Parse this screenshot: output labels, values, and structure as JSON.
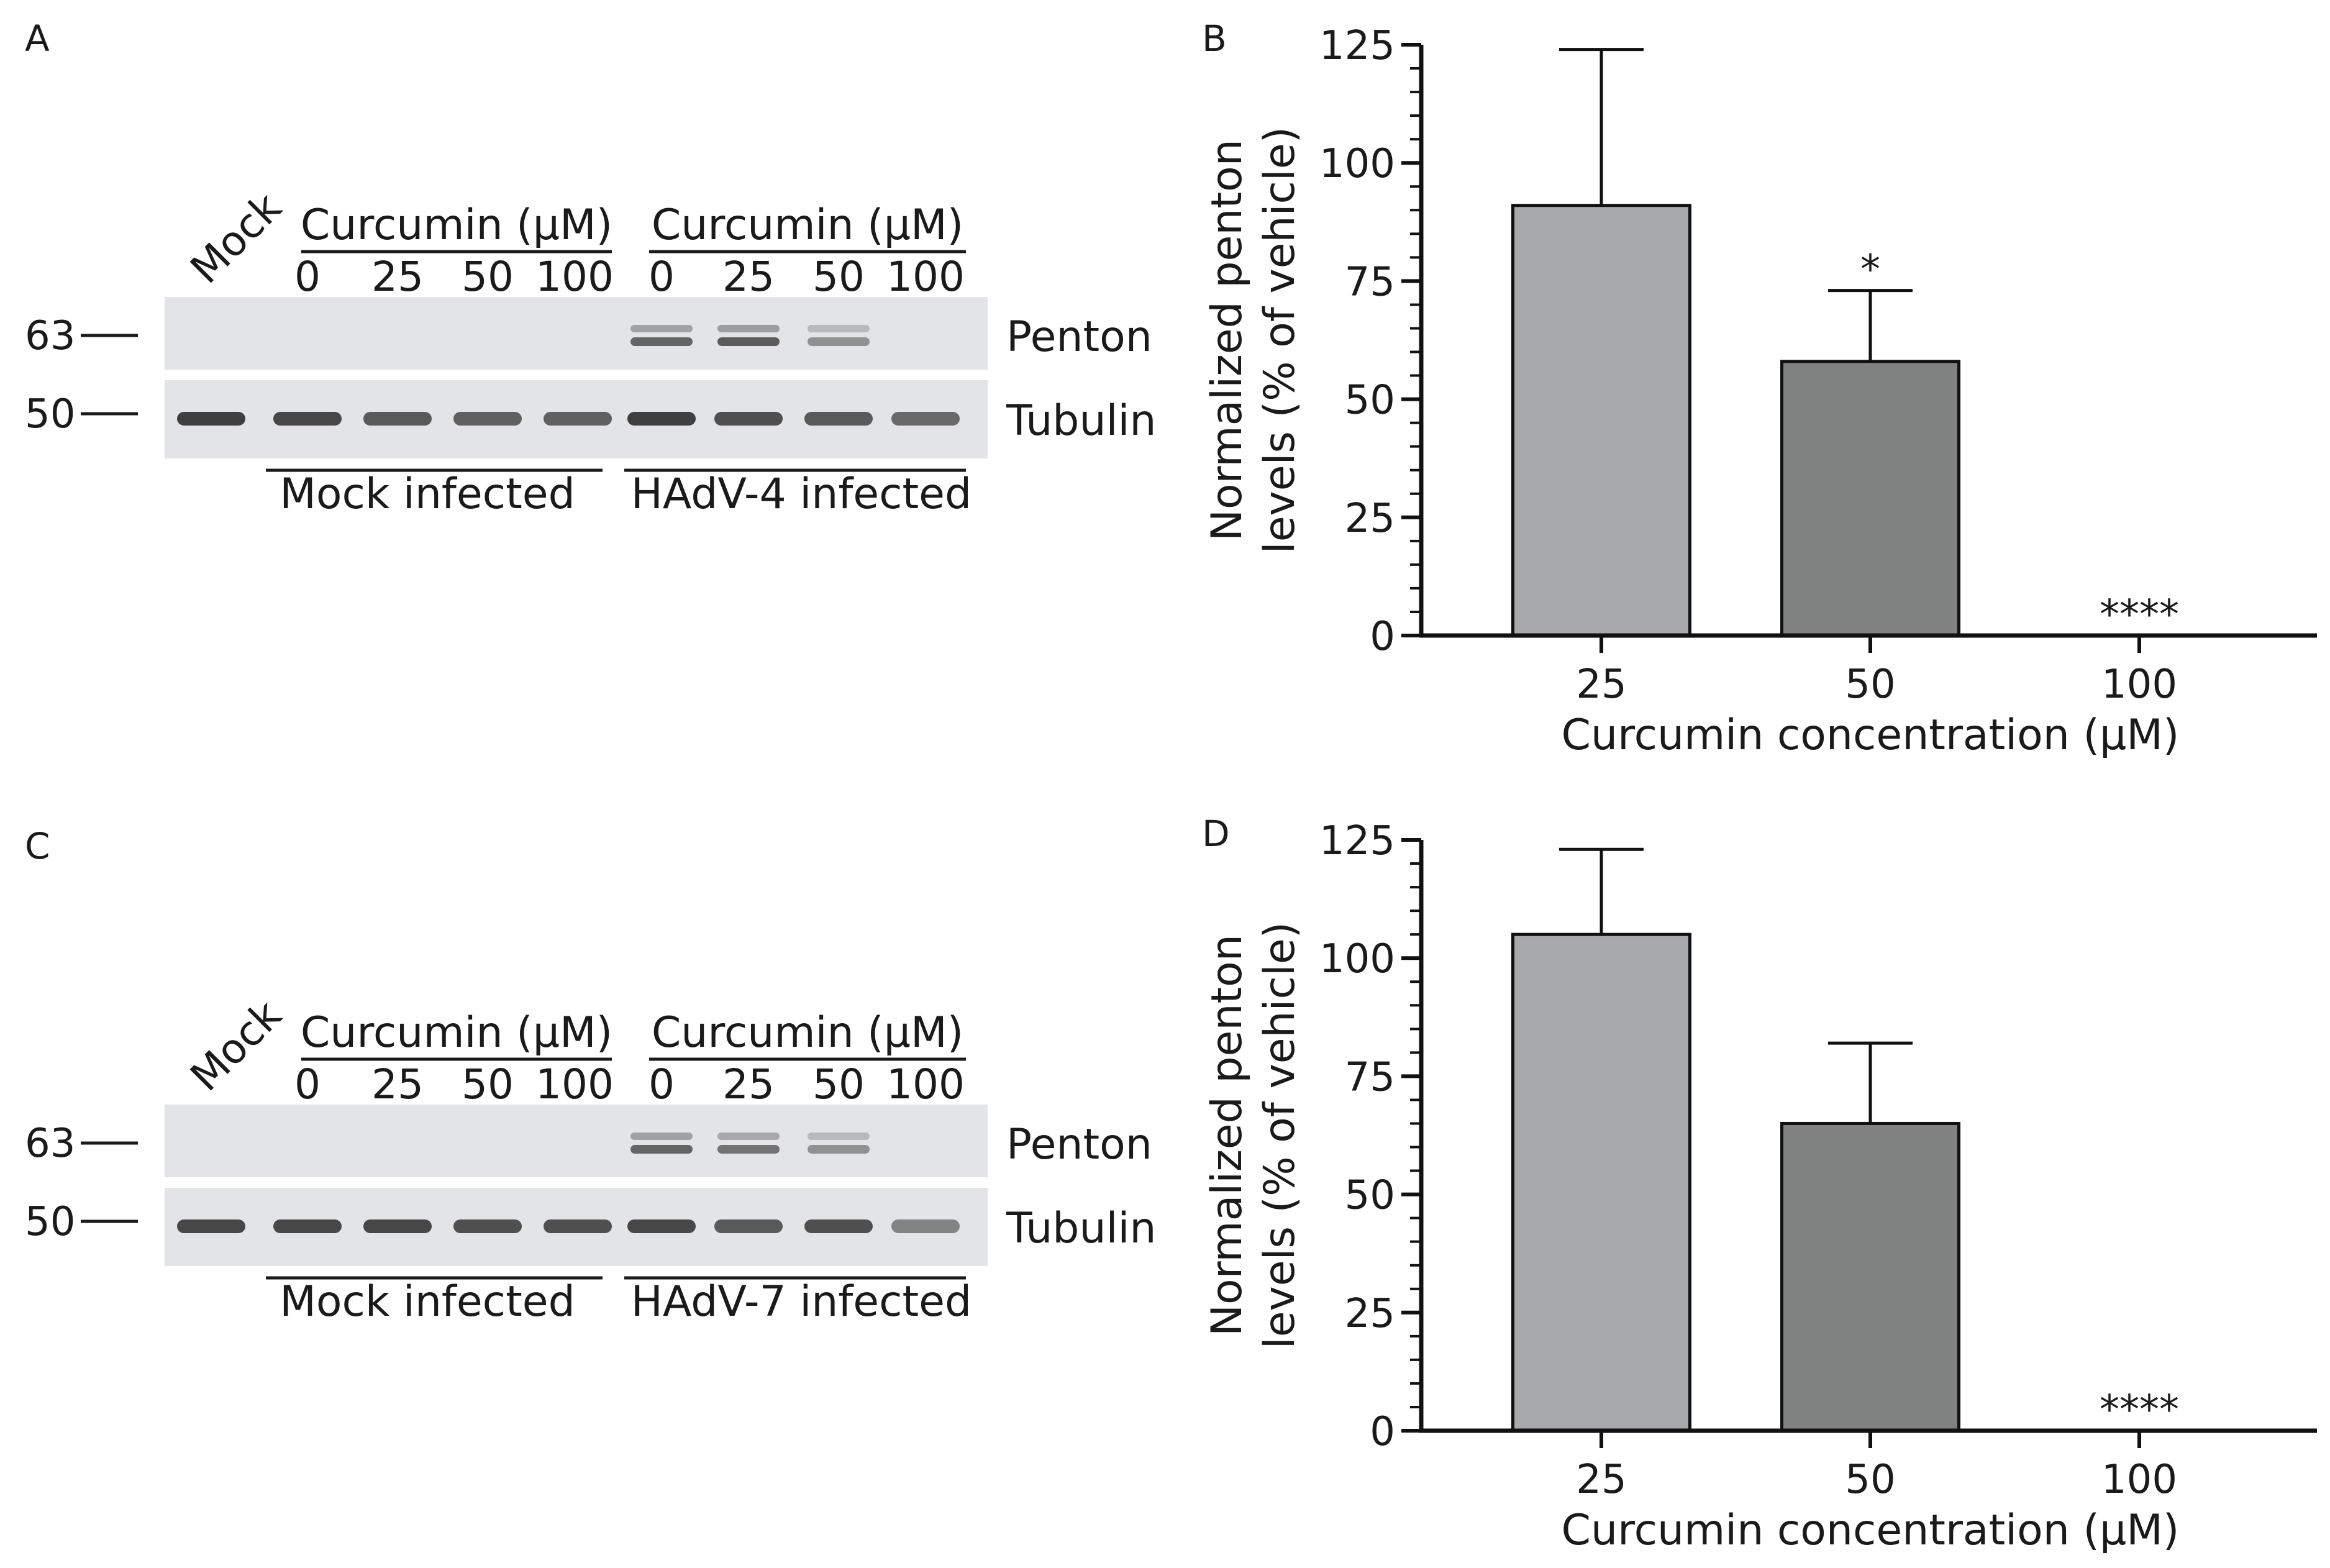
{
  "panels": {
    "a": {
      "letter": "A",
      "lane_mock": "Mock",
      "treatment_label": "Curcumin (μM)",
      "doses": [
        "0",
        "25",
        "50",
        "100"
      ],
      "marker_upper": "63",
      "marker_lower": "50",
      "band_upper_label": "Penton",
      "band_lower_label": "Tubulin",
      "group_mock": "Mock infected",
      "group_virus": "HAdV-4 infected",
      "penton_intensity": [
        0,
        0,
        0,
        0,
        0,
        0.85,
        0.9,
        0.55,
        0
      ],
      "tubulin_intensity": [
        0.95,
        0.9,
        0.8,
        0.75,
        0.75,
        0.95,
        0.85,
        0.8,
        0.7
      ]
    },
    "c": {
      "letter": "C",
      "lane_mock": "Mock",
      "treatment_label": "Curcumin (μM)",
      "doses": [
        "0",
        "25",
        "50",
        "100"
      ],
      "marker_upper": "63",
      "marker_lower": "50",
      "band_upper_label": "Penton",
      "band_lower_label": "Tubulin",
      "group_mock": "Mock infected",
      "group_virus": "HAdV-7 infected",
      "penton_intensity": [
        0,
        0,
        0,
        0,
        0,
        0.85,
        0.75,
        0.55,
        0
      ],
      "tubulin_intensity": [
        0.9,
        0.9,
        0.9,
        0.85,
        0.85,
        0.9,
        0.8,
        0.85,
        0.55
      ]
    }
  },
  "chart_data": [
    {
      "letter": "B",
      "type": "bar",
      "categories": [
        "25",
        "50",
        "100"
      ],
      "values": [
        91,
        58,
        0
      ],
      "error_upper": [
        124,
        73,
        null
      ],
      "significance": [
        "",
        "*",
        "****"
      ],
      "bar_colors": [
        "#a7a9ab",
        "#808281",
        "#808281"
      ],
      "xlabel": "Curcumin concentration (μM)",
      "ylabel_line1": "Normalized penton",
      "ylabel_line2": "levels (% of vehicle)",
      "ylim": [
        0,
        125
      ],
      "yticks": [
        "0",
        "25",
        "50",
        "75",
        "100",
        "125"
      ],
      "grid": false
    },
    {
      "letter": "D",
      "type": "bar",
      "categories": [
        "25",
        "50",
        "100"
      ],
      "values": [
        105,
        65,
        0
      ],
      "error_upper": [
        123,
        82,
        null
      ],
      "significance": [
        "",
        "",
        "****"
      ],
      "bar_colors": [
        "#a7a9ab",
        "#808281",
        "#808281"
      ],
      "xlabel": "Curcumin concentration (μM)",
      "ylabel_line1": "Normalized penton",
      "ylabel_line2": "levels (% of vehicle)",
      "ylim": [
        0,
        125
      ],
      "yticks": [
        "0",
        "25",
        "50",
        "75",
        "100",
        "125"
      ],
      "grid": false
    }
  ]
}
